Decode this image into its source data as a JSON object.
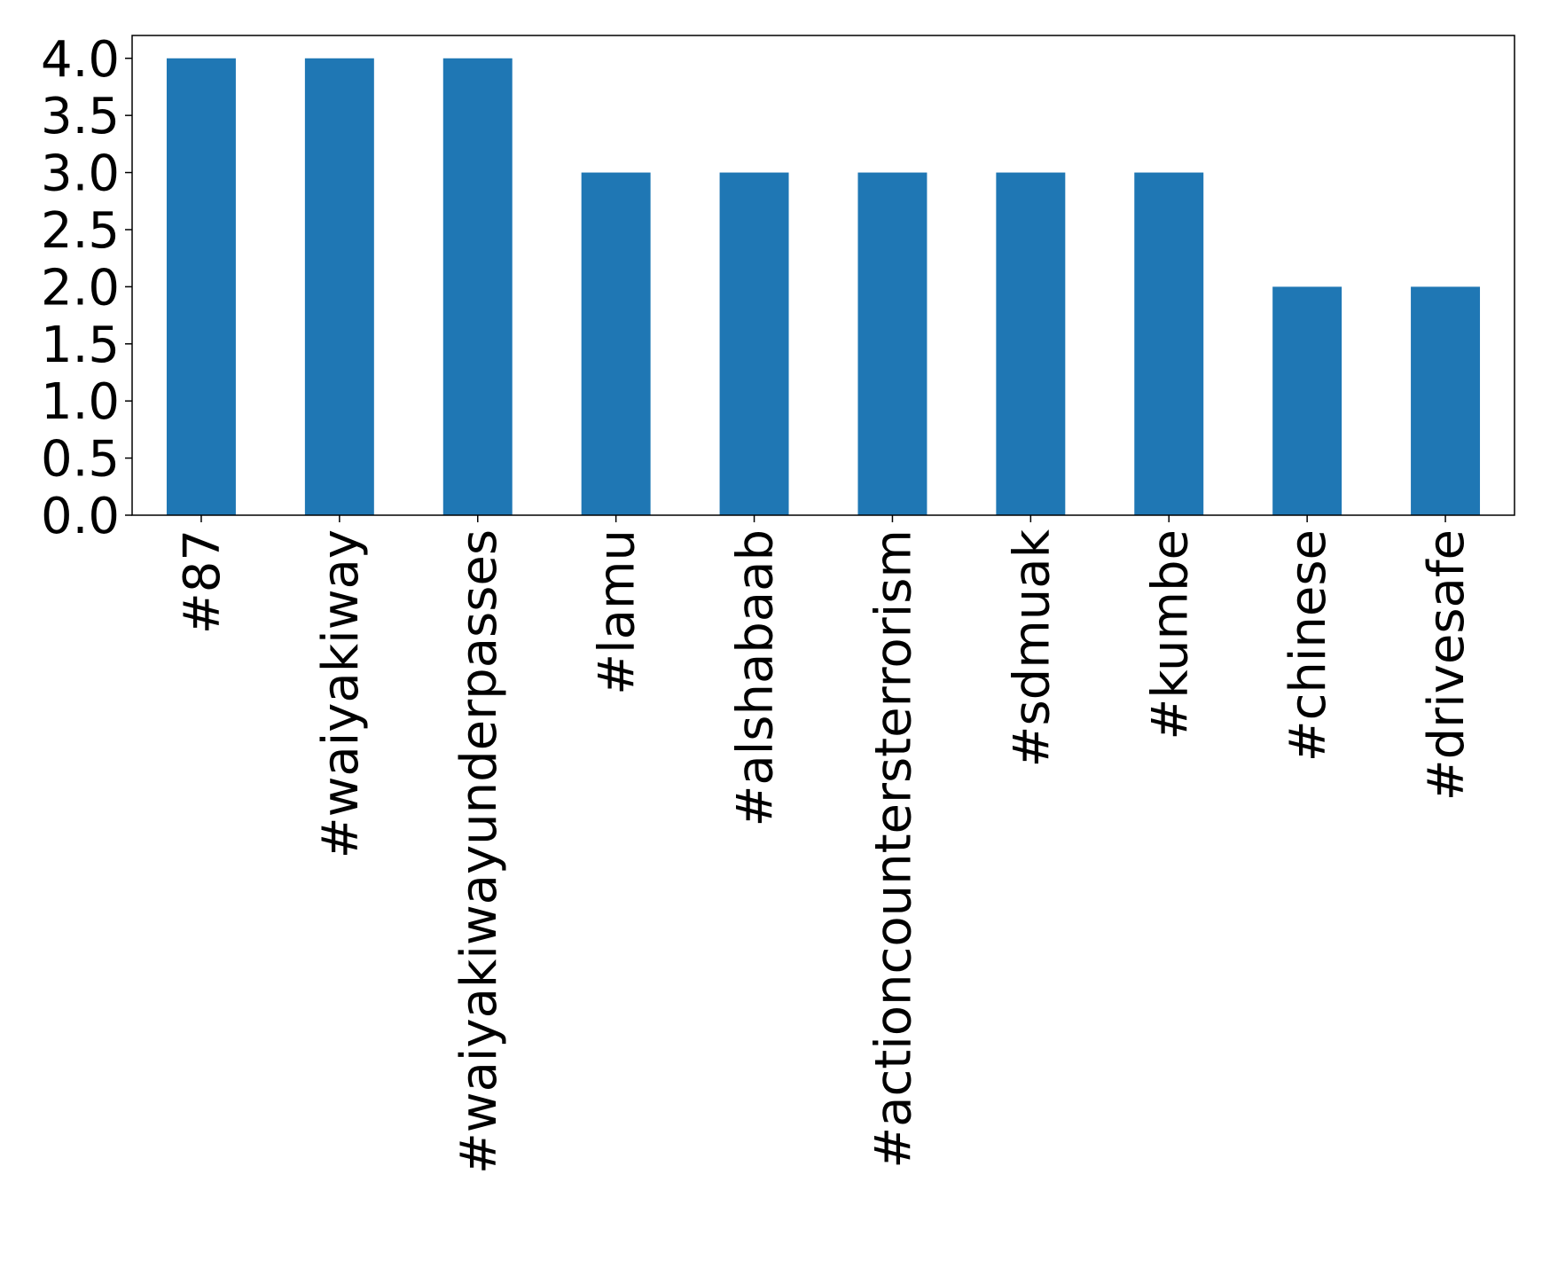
{
  "chart_data": {
    "type": "bar",
    "categories": [
      "#87",
      "#waiyakiway",
      "#waiyakiwayunderpasses",
      "#lamu",
      "#alshabaab",
      "#actioncountersterrorism",
      "#sdmuak",
      "#kumbe",
      "#chinese",
      "#drivesafe"
    ],
    "values": [
      4,
      4,
      4,
      3,
      3,
      3,
      3,
      3,
      2,
      2
    ],
    "color": "#1f77b4",
    "ylim": [
      0,
      4.2
    ],
    "yticks": [
      {
        "value": 0,
        "label": "0.0"
      },
      0.5,
      {
        "value": 1,
        "label": "1.0"
      },
      1.5,
      {
        "value": 2,
        "label": "2.0"
      },
      2.5,
      {
        "value": 3,
        "label": "3.0"
      },
      3.5,
      {
        "value": 4,
        "label": "4.0"
      }
    ],
    "grid": false
  }
}
